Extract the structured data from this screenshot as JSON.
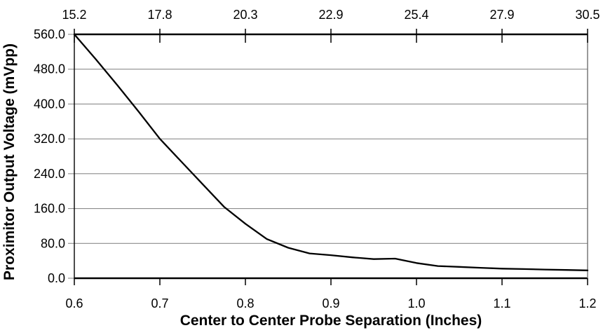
{
  "chart_data": {
    "type": "line",
    "title": "",
    "x_bottom": {
      "label": "Center to Center Probe Separation (Inches)",
      "ticks": [
        "0.6",
        "0.7",
        "0.8",
        "0.9",
        "1.0",
        "1.1",
        "1.2"
      ],
      "tick_values": [
        0.6,
        0.7,
        0.8,
        0.9,
        1.0,
        1.1,
        1.2
      ],
      "range": [
        0.6,
        1.2
      ]
    },
    "x_top": {
      "ticks": [
        "15.2",
        "17.8",
        "20.3",
        "22.9",
        "25.4",
        "27.9",
        "30.5"
      ],
      "tick_values": [
        0.6,
        0.7,
        0.8,
        0.9,
        1.0,
        1.1,
        1.2
      ]
    },
    "y_left": {
      "label": "Proximitor Output Voltage (mVpp)",
      "ticks": [
        "560.0",
        "480.0",
        "400.0",
        "320.0",
        "240.0",
        "160.0",
        "80.0",
        "0.0"
      ],
      "tick_values": [
        560,
        480,
        400,
        320,
        240,
        160,
        80,
        0
      ],
      "range": [
        0,
        560
      ]
    },
    "grid": true,
    "legend": false,
    "colors": {
      "line": "#000000",
      "grid": "#8c8c8c",
      "axis": "#000000",
      "right_border": "#6e6e6e",
      "background": "#ffffff"
    },
    "series": [
      {
        "x": [
          0.6,
          0.625,
          0.65,
          0.675,
          0.7,
          0.725,
          0.75,
          0.775,
          0.8,
          0.825,
          0.85,
          0.875,
          0.9,
          0.925,
          0.95,
          0.975,
          1.0,
          1.025,
          1.05,
          1.075,
          1.1,
          1.125,
          1.15,
          1.175,
          1.2
        ],
        "y": [
          560,
          503,
          444,
          383,
          320,
          268,
          216,
          164,
          125,
          90,
          70,
          57,
          53,
          48,
          44,
          45,
          35,
          28,
          26,
          24,
          22,
          21,
          20,
          19,
          18
        ]
      }
    ]
  }
}
